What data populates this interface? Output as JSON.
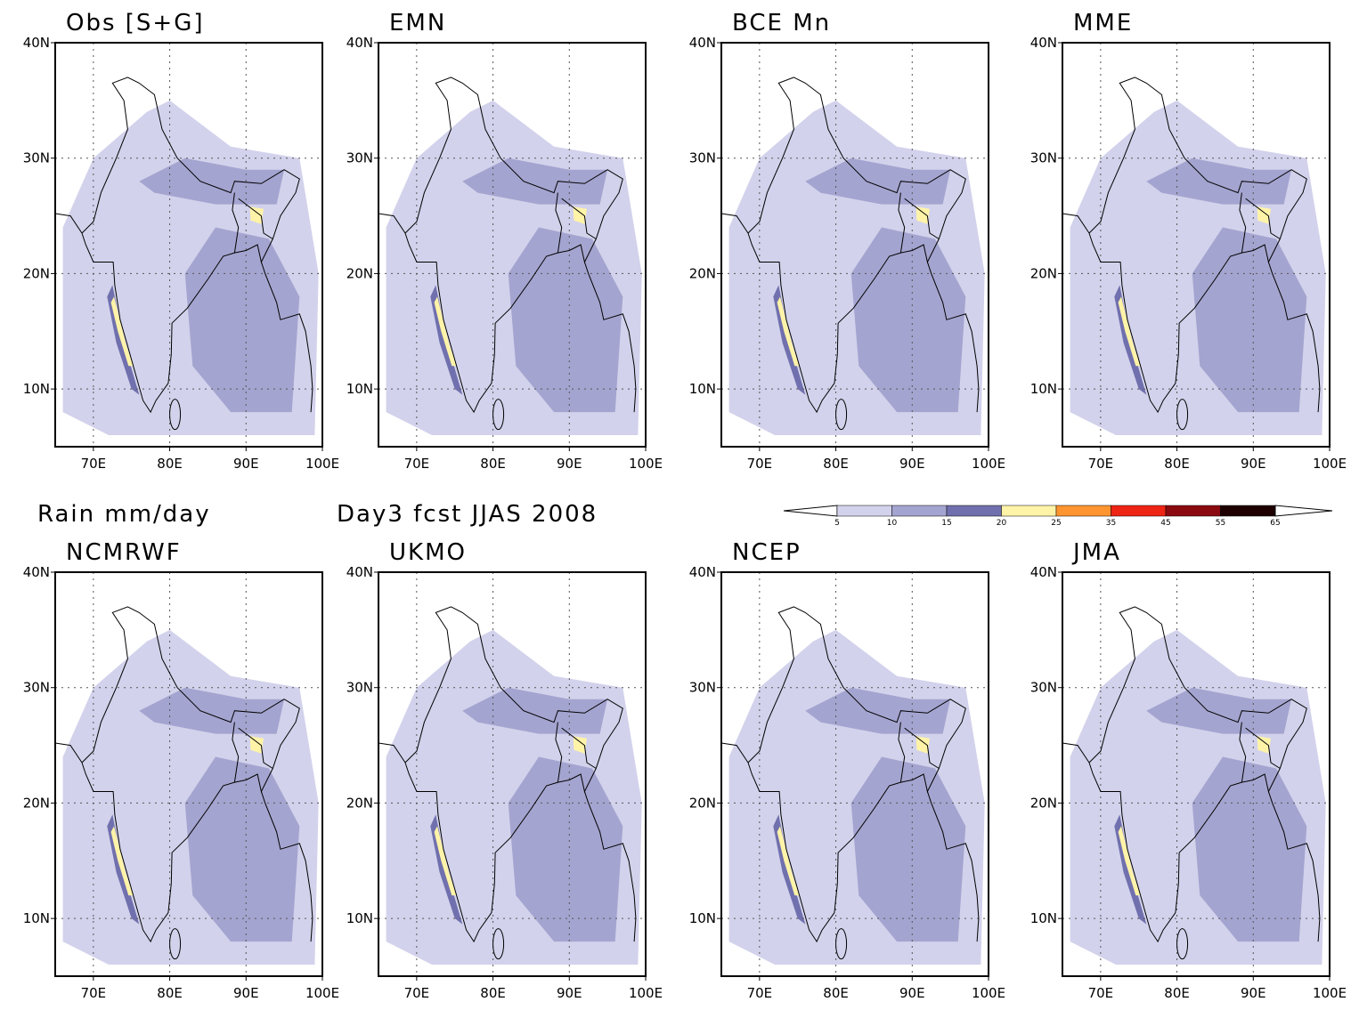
{
  "title_left": "Rain mm/day",
  "title_right": "Day3 fcst JJAS 2008",
  "panels": [
    {
      "title": "Obs [S+G]"
    },
    {
      "title": "EMN"
    },
    {
      "title": "BCE Mn"
    },
    {
      "title": "MME"
    },
    {
      "title": "NCMRWF"
    },
    {
      "title": "UKMO"
    },
    {
      "title": "NCEP"
    },
    {
      "title": "JMA"
    }
  ],
  "lon_range": [
    65,
    100
  ],
  "lat_range": [
    5,
    40
  ],
  "lon_ticks": [
    {
      "value": 70,
      "label": "70E"
    },
    {
      "value": 80,
      "label": "80E"
    },
    {
      "value": 90,
      "label": "90E"
    },
    {
      "value": 100,
      "label": "100E"
    }
  ],
  "lat_ticks": [
    {
      "value": 10,
      "label": "10N"
    },
    {
      "value": 20,
      "label": "20N"
    },
    {
      "value": 30,
      "label": "30N"
    },
    {
      "value": 40,
      "label": "40N"
    }
  ],
  "colorbar": {
    "levels": [
      5,
      10,
      15,
      20,
      25,
      35,
      45,
      55,
      65
    ],
    "colors": [
      "#d2d2ec",
      "#a4a4d0",
      "#7070ae",
      "#fff3a8",
      "#ff9530",
      "#ee2414",
      "#8a0a10",
      "#1e0000"
    ]
  }
}
